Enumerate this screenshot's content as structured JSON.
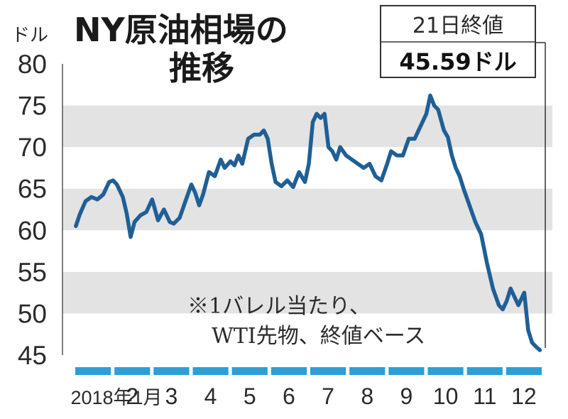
{
  "title": {
    "line1": "NY原油相場の",
    "line2": "推移"
  },
  "annotation": {
    "line1": "21日終値",
    "line2": "45.59ドル"
  },
  "note": {
    "line1": "※1バレル当たり、",
    "line2": "WTI先物、終値ベース"
  },
  "colors": {
    "line": "#1f5f96",
    "month_bar": "#2a9fd8",
    "band": "#e3e3e3",
    "axis": "#555555"
  },
  "chart_data": {
    "type": "line",
    "title": "NY原油相場の推移",
    "ylabel": "ドル",
    "xlabel": "",
    "ylim": [
      45,
      80
    ],
    "yticks": [
      45,
      50,
      55,
      60,
      65,
      70,
      75,
      80
    ],
    "grid": "alternating horizontal bands",
    "x_unit": "months from 2018-01-01 (0 = Jan 1, 12 = Dec 31)",
    "month_labels": [
      "2018年1月",
      "2",
      "3",
      "4",
      "5",
      "6",
      "7",
      "8",
      "9",
      "10",
      "11",
      "12"
    ],
    "series": [
      {
        "x": [
          0.05,
          0.15,
          0.3,
          0.45,
          0.6,
          0.75,
          0.9,
          1.0,
          1.1,
          1.25,
          1.35,
          1.45,
          1.55,
          1.7,
          1.85,
          2.0,
          2.15,
          2.3,
          2.45,
          2.55,
          2.7,
          2.85,
          3.0,
          3.1,
          3.2,
          3.3,
          3.45,
          3.6,
          3.75,
          3.85,
          4.0,
          4.1,
          4.2,
          4.3,
          4.45,
          4.6,
          4.75,
          4.85,
          4.95,
          5.05,
          5.15,
          5.3,
          5.45,
          5.6,
          5.75,
          5.9,
          6.0,
          6.1,
          6.2,
          6.3,
          6.4,
          6.5,
          6.6,
          6.7,
          6.8,
          6.95,
          7.1,
          7.25,
          7.4,
          7.55,
          7.7,
          7.85,
          8.0,
          8.1,
          8.25,
          8.4,
          8.55,
          8.7,
          8.85,
          9.0,
          9.1,
          9.2,
          9.3,
          9.45,
          9.55,
          9.65,
          9.75,
          9.85,
          9.95,
          10.1,
          10.25,
          10.4,
          10.55,
          10.7,
          10.85,
          10.95,
          11.05,
          11.15,
          11.25,
          11.35,
          11.5,
          11.6,
          11.7,
          11.8,
          11.9
        ],
        "values": [
          60.5,
          61.9,
          63.5,
          64.0,
          63.7,
          64.3,
          65.8,
          66.0,
          65.5,
          64.0,
          62.0,
          59.2,
          61.0,
          61.8,
          62.2,
          63.7,
          61.2,
          62.5,
          61.0,
          60.8,
          61.5,
          63.5,
          65.5,
          64.5,
          63.0,
          64.3,
          67.0,
          66.5,
          68.5,
          67.5,
          68.3,
          67.8,
          69.0,
          68.0,
          71.0,
          71.5,
          71.5,
          72.0,
          71.0,
          68.0,
          65.8,
          65.3,
          66.0,
          65.2,
          67.0,
          65.8,
          68.0,
          73.0,
          74.0,
          73.5,
          74.0,
          70.0,
          69.5,
          68.5,
          70.0,
          69.0,
          68.5,
          68.0,
          67.5,
          68.0,
          66.5,
          66.0,
          68.0,
          69.5,
          69.0,
          69.0,
          71.0,
          71.0,
          72.5,
          74.0,
          76.2,
          75.0,
          74.5,
          72.0,
          71.2,
          69.0,
          67.5,
          66.5,
          65.0,
          63.0,
          61.0,
          59.5,
          56.0,
          53.0,
          51.0,
          50.5,
          51.5,
          53.0,
          52.0,
          51.0,
          52.5,
          48.0,
          46.5,
          46.0,
          45.6
        ]
      }
    ]
  }
}
